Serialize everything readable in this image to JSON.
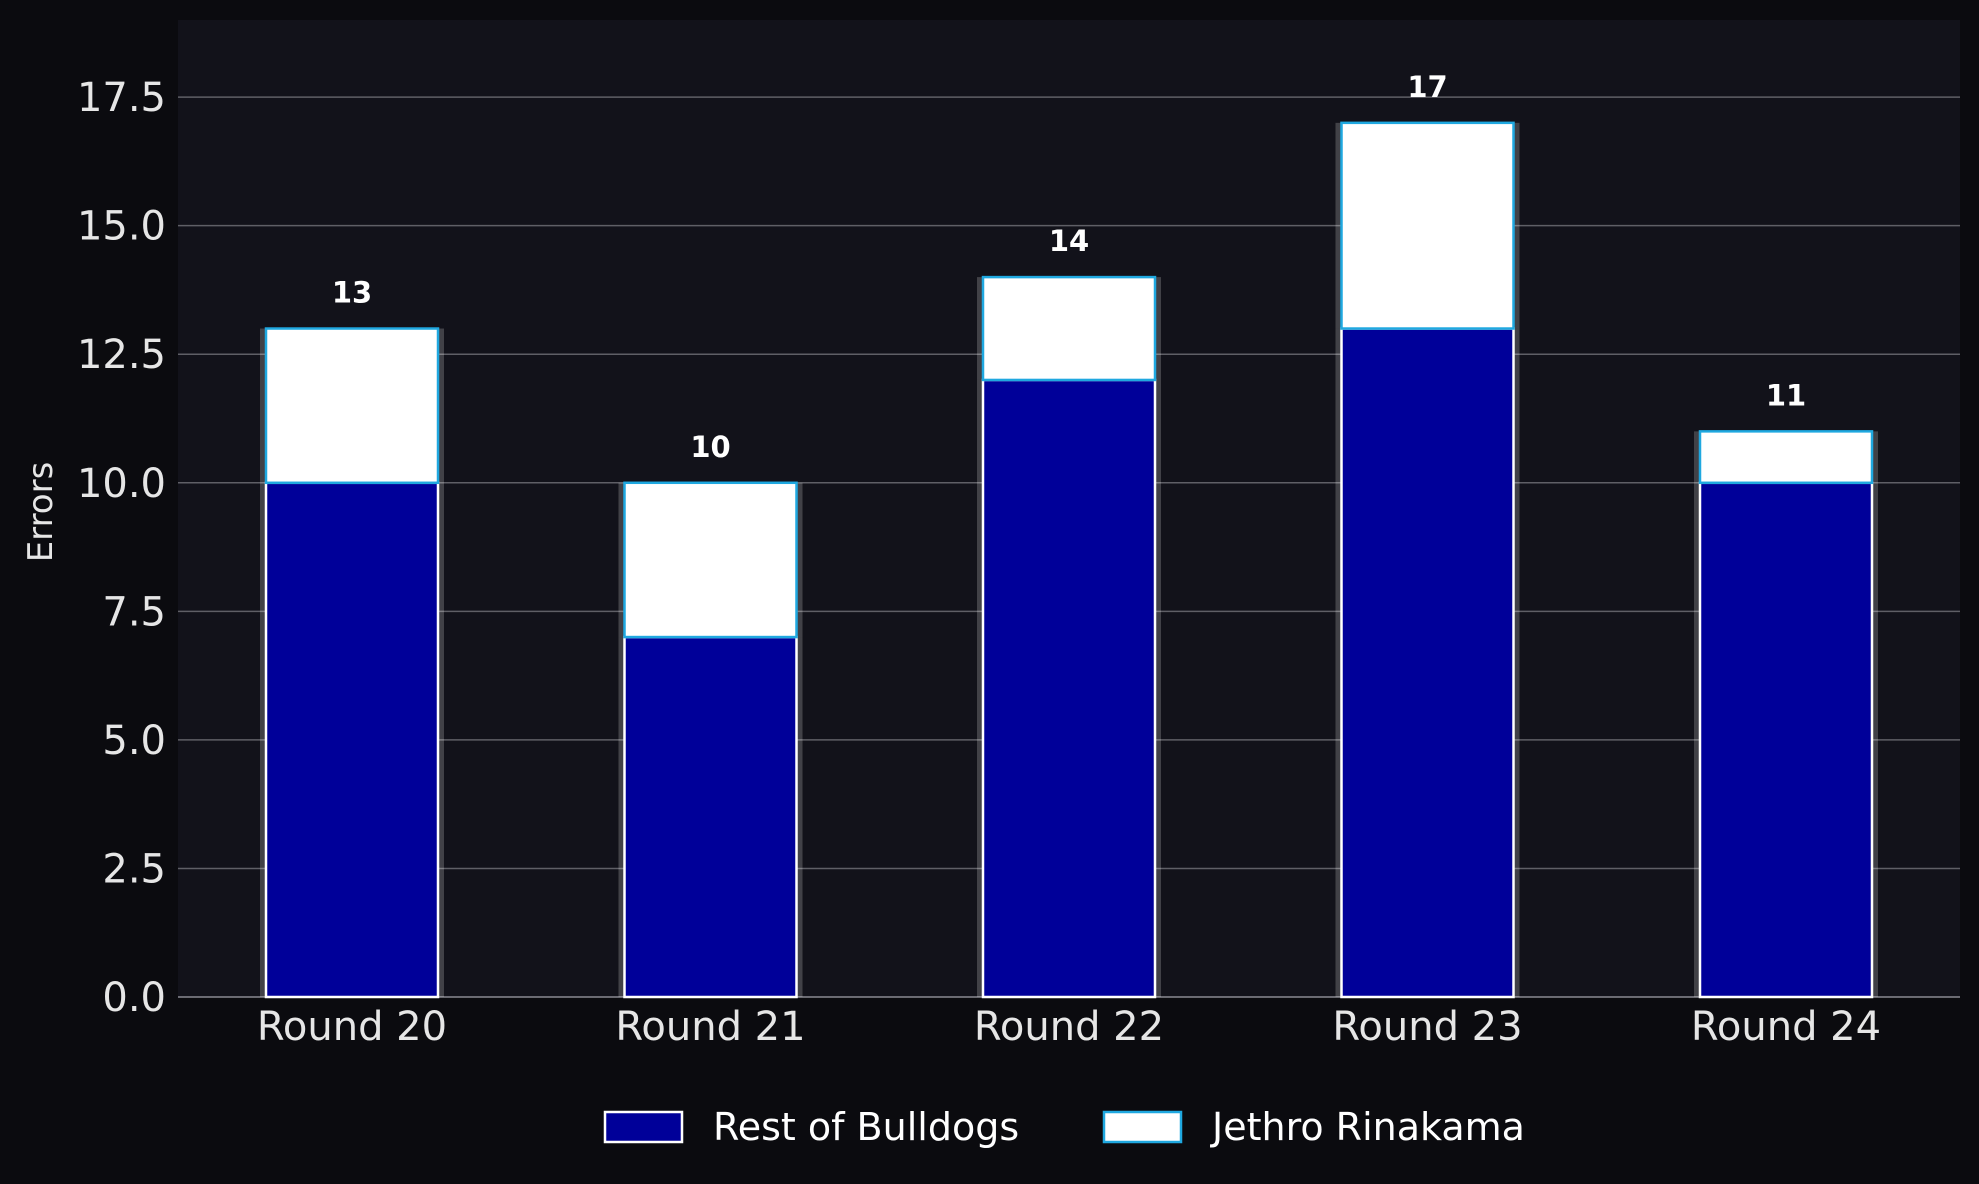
{
  "chart_data": {
    "type": "bar",
    "stacked": true,
    "categories": [
      "Round 20",
      "Round 21",
      "Round 22",
      "Round 23",
      "Round 24"
    ],
    "series": [
      {
        "name": "Rest of Bulldogs",
        "values": [
          10,
          7,
          12,
          13,
          10
        ],
        "color": "#000099",
        "edge": "#ffffff"
      },
      {
        "name": "Jethro Rinakama",
        "values": [
          3,
          3,
          2,
          4,
          1
        ],
        "color": "#ffffff",
        "edge": "#1fa8e0"
      }
    ],
    "totals": [
      "13",
      "10",
      "14",
      "17",
      "11"
    ],
    "ylabel": "Errors",
    "xlabel": "",
    "ylim": [
      0,
      19
    ],
    "yticks": [
      "0.0",
      "2.5",
      "5.0",
      "7.5",
      "10.0",
      "12.5",
      "15.0",
      "17.5"
    ],
    "grid": "horizontal",
    "legend_position": "bottom-center",
    "colors": {
      "page_background": "#0b0b0f",
      "plot_background": "#12121a",
      "grid": "#5f5f66",
      "text": "#e6e6e6"
    }
  }
}
